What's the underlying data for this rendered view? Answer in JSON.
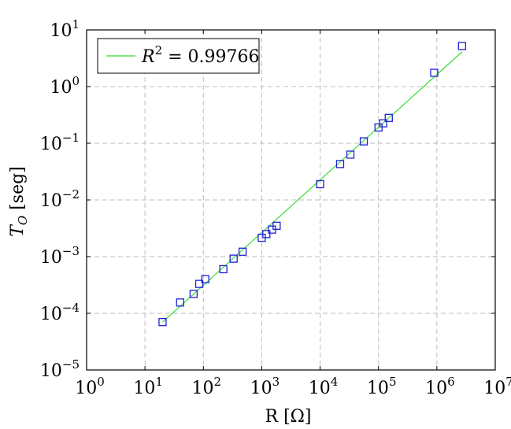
{
  "chart_data": {
    "type": "scatter",
    "xscale": "log",
    "yscale": "log",
    "xlim": [
      1,
      10000000
    ],
    "ylim": [
      1e-05,
      10
    ],
    "grid": true,
    "xlabel": "R [Ω]",
    "ylabel": {
      "main": "T",
      "sub": "O",
      "rest": " [seg]"
    },
    "x_ticks": [
      {
        "value": 1,
        "base": "10",
        "exp": "0"
      },
      {
        "value": 10,
        "base": "10",
        "exp": "1"
      },
      {
        "value": 100,
        "base": "10",
        "exp": "2"
      },
      {
        "value": 1000,
        "base": "10",
        "exp": "3"
      },
      {
        "value": 10000,
        "base": "10",
        "exp": "4"
      },
      {
        "value": 100000,
        "base": "10",
        "exp": "5"
      },
      {
        "value": 1000000,
        "base": "10",
        "exp": "6"
      },
      {
        "value": 10000000,
        "base": "10",
        "exp": "7"
      }
    ],
    "y_ticks": [
      {
        "value": 1e-05,
        "base": "10",
        "exp": "−5"
      },
      {
        "value": 0.0001,
        "base": "10",
        "exp": "−4"
      },
      {
        "value": 0.001,
        "base": "10",
        "exp": "−3"
      },
      {
        "value": 0.01,
        "base": "10",
        "exp": "−2"
      },
      {
        "value": 0.1,
        "base": "10",
        "exp": "−1"
      },
      {
        "value": 1,
        "base": "10",
        "exp": "0"
      },
      {
        "value": 10,
        "base": "10",
        "exp": "1"
      }
    ],
    "legend": {
      "position": "top-left",
      "label": {
        "var": "R",
        "exp": "2",
        "rest": " = 0.99766"
      }
    },
    "markers": {
      "color": "#1f1fd6",
      "points": [
        [
          20,
          7e-05
        ],
        [
          40,
          0.000155
        ],
        [
          68,
          0.00022
        ],
        [
          85,
          0.00033
        ],
        [
          108,
          0.0004
        ],
        [
          220,
          0.0006
        ],
        [
          330,
          0.00092
        ],
        [
          470,
          0.00122
        ],
        [
          1000,
          0.00215
        ],
        [
          1200,
          0.0025
        ],
        [
          1500,
          0.003
        ],
        [
          1800,
          0.0035
        ],
        [
          10000,
          0.019
        ],
        [
          22000,
          0.043
        ],
        [
          33000,
          0.063
        ],
        [
          56000,
          0.108
        ],
        [
          100000,
          0.19
        ],
        [
          120000,
          0.225
        ],
        [
          150000,
          0.28
        ],
        [
          900000,
          1.75
        ],
        [
          2700000,
          5.2
        ]
      ]
    },
    "fit": {
      "color": "#33dd33",
      "points": [
        [
          20,
          7e-05
        ],
        [
          2700000,
          4.1
        ]
      ]
    }
  }
}
